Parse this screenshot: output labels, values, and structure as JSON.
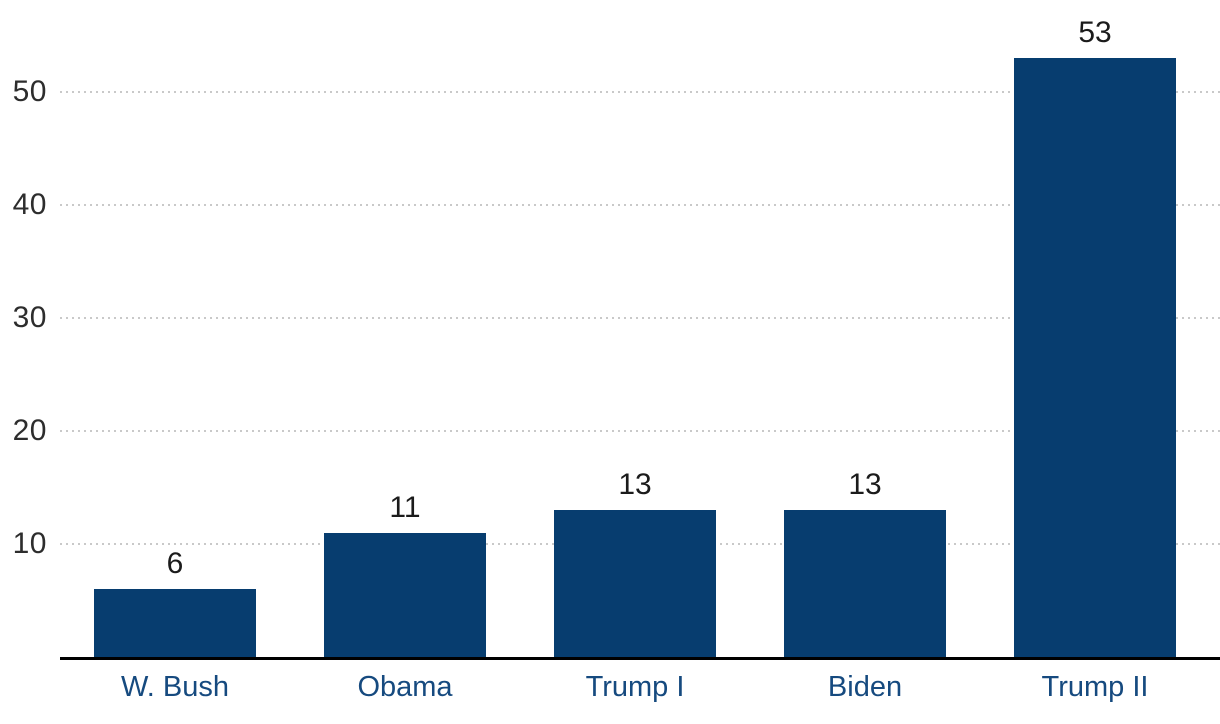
{
  "chart_data": {
    "type": "bar",
    "title": "",
    "xlabel": "",
    "ylabel": "",
    "categories": [
      "W. Bush",
      "Obama",
      "Trump I",
      "Biden",
      "Trump II"
    ],
    "values": [
      6,
      11,
      13,
      13,
      53
    ],
    "value_labels": [
      "6",
      "11",
      "13",
      "13",
      "53"
    ],
    "yticks": [
      10,
      20,
      30,
      40,
      50
    ],
    "ylim": [
      0,
      58
    ],
    "grid": "horizontal-dotted",
    "legend": "none",
    "colors": {
      "bar": "#073d6f",
      "value_label": "#1b1b1b",
      "tick_label": "#2d2d2d",
      "category_label": "#164a7f",
      "gridline": "#c9c9c9",
      "axis": "#000000",
      "background": "#ffffff"
    }
  }
}
